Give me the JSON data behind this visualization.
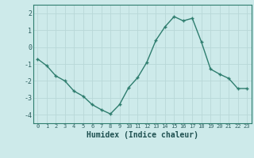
{
  "x": [
    0,
    1,
    2,
    3,
    4,
    5,
    6,
    7,
    8,
    9,
    10,
    11,
    12,
    13,
    14,
    15,
    16,
    17,
    18,
    19,
    20,
    21,
    22,
    23
  ],
  "y": [
    -0.7,
    -1.1,
    -1.7,
    -2.0,
    -2.6,
    -2.9,
    -3.4,
    -3.7,
    -3.95,
    -3.4,
    -2.4,
    -1.8,
    -0.9,
    0.4,
    1.2,
    1.8,
    1.55,
    1.7,
    0.3,
    -1.3,
    -1.6,
    -1.85,
    -2.45,
    -2.45
  ],
  "xlabel": "Humidex (Indice chaleur)",
  "line_color": "#2e7d6e",
  "marker": "+",
  "bg_color": "#cdeaea",
  "grid_color": "#b8d8d8",
  "tick_label_color": "#2e6060",
  "xlabel_color": "#1e5050",
  "ylim": [
    -4.5,
    2.5
  ],
  "xlim": [
    -0.5,
    23.5
  ],
  "yticks": [
    -4,
    -3,
    -2,
    -1,
    0,
    1,
    2
  ],
  "xticks": [
    0,
    1,
    2,
    3,
    4,
    5,
    6,
    7,
    8,
    9,
    10,
    11,
    12,
    13,
    14,
    15,
    16,
    17,
    18,
    19,
    20,
    21,
    22,
    23
  ]
}
